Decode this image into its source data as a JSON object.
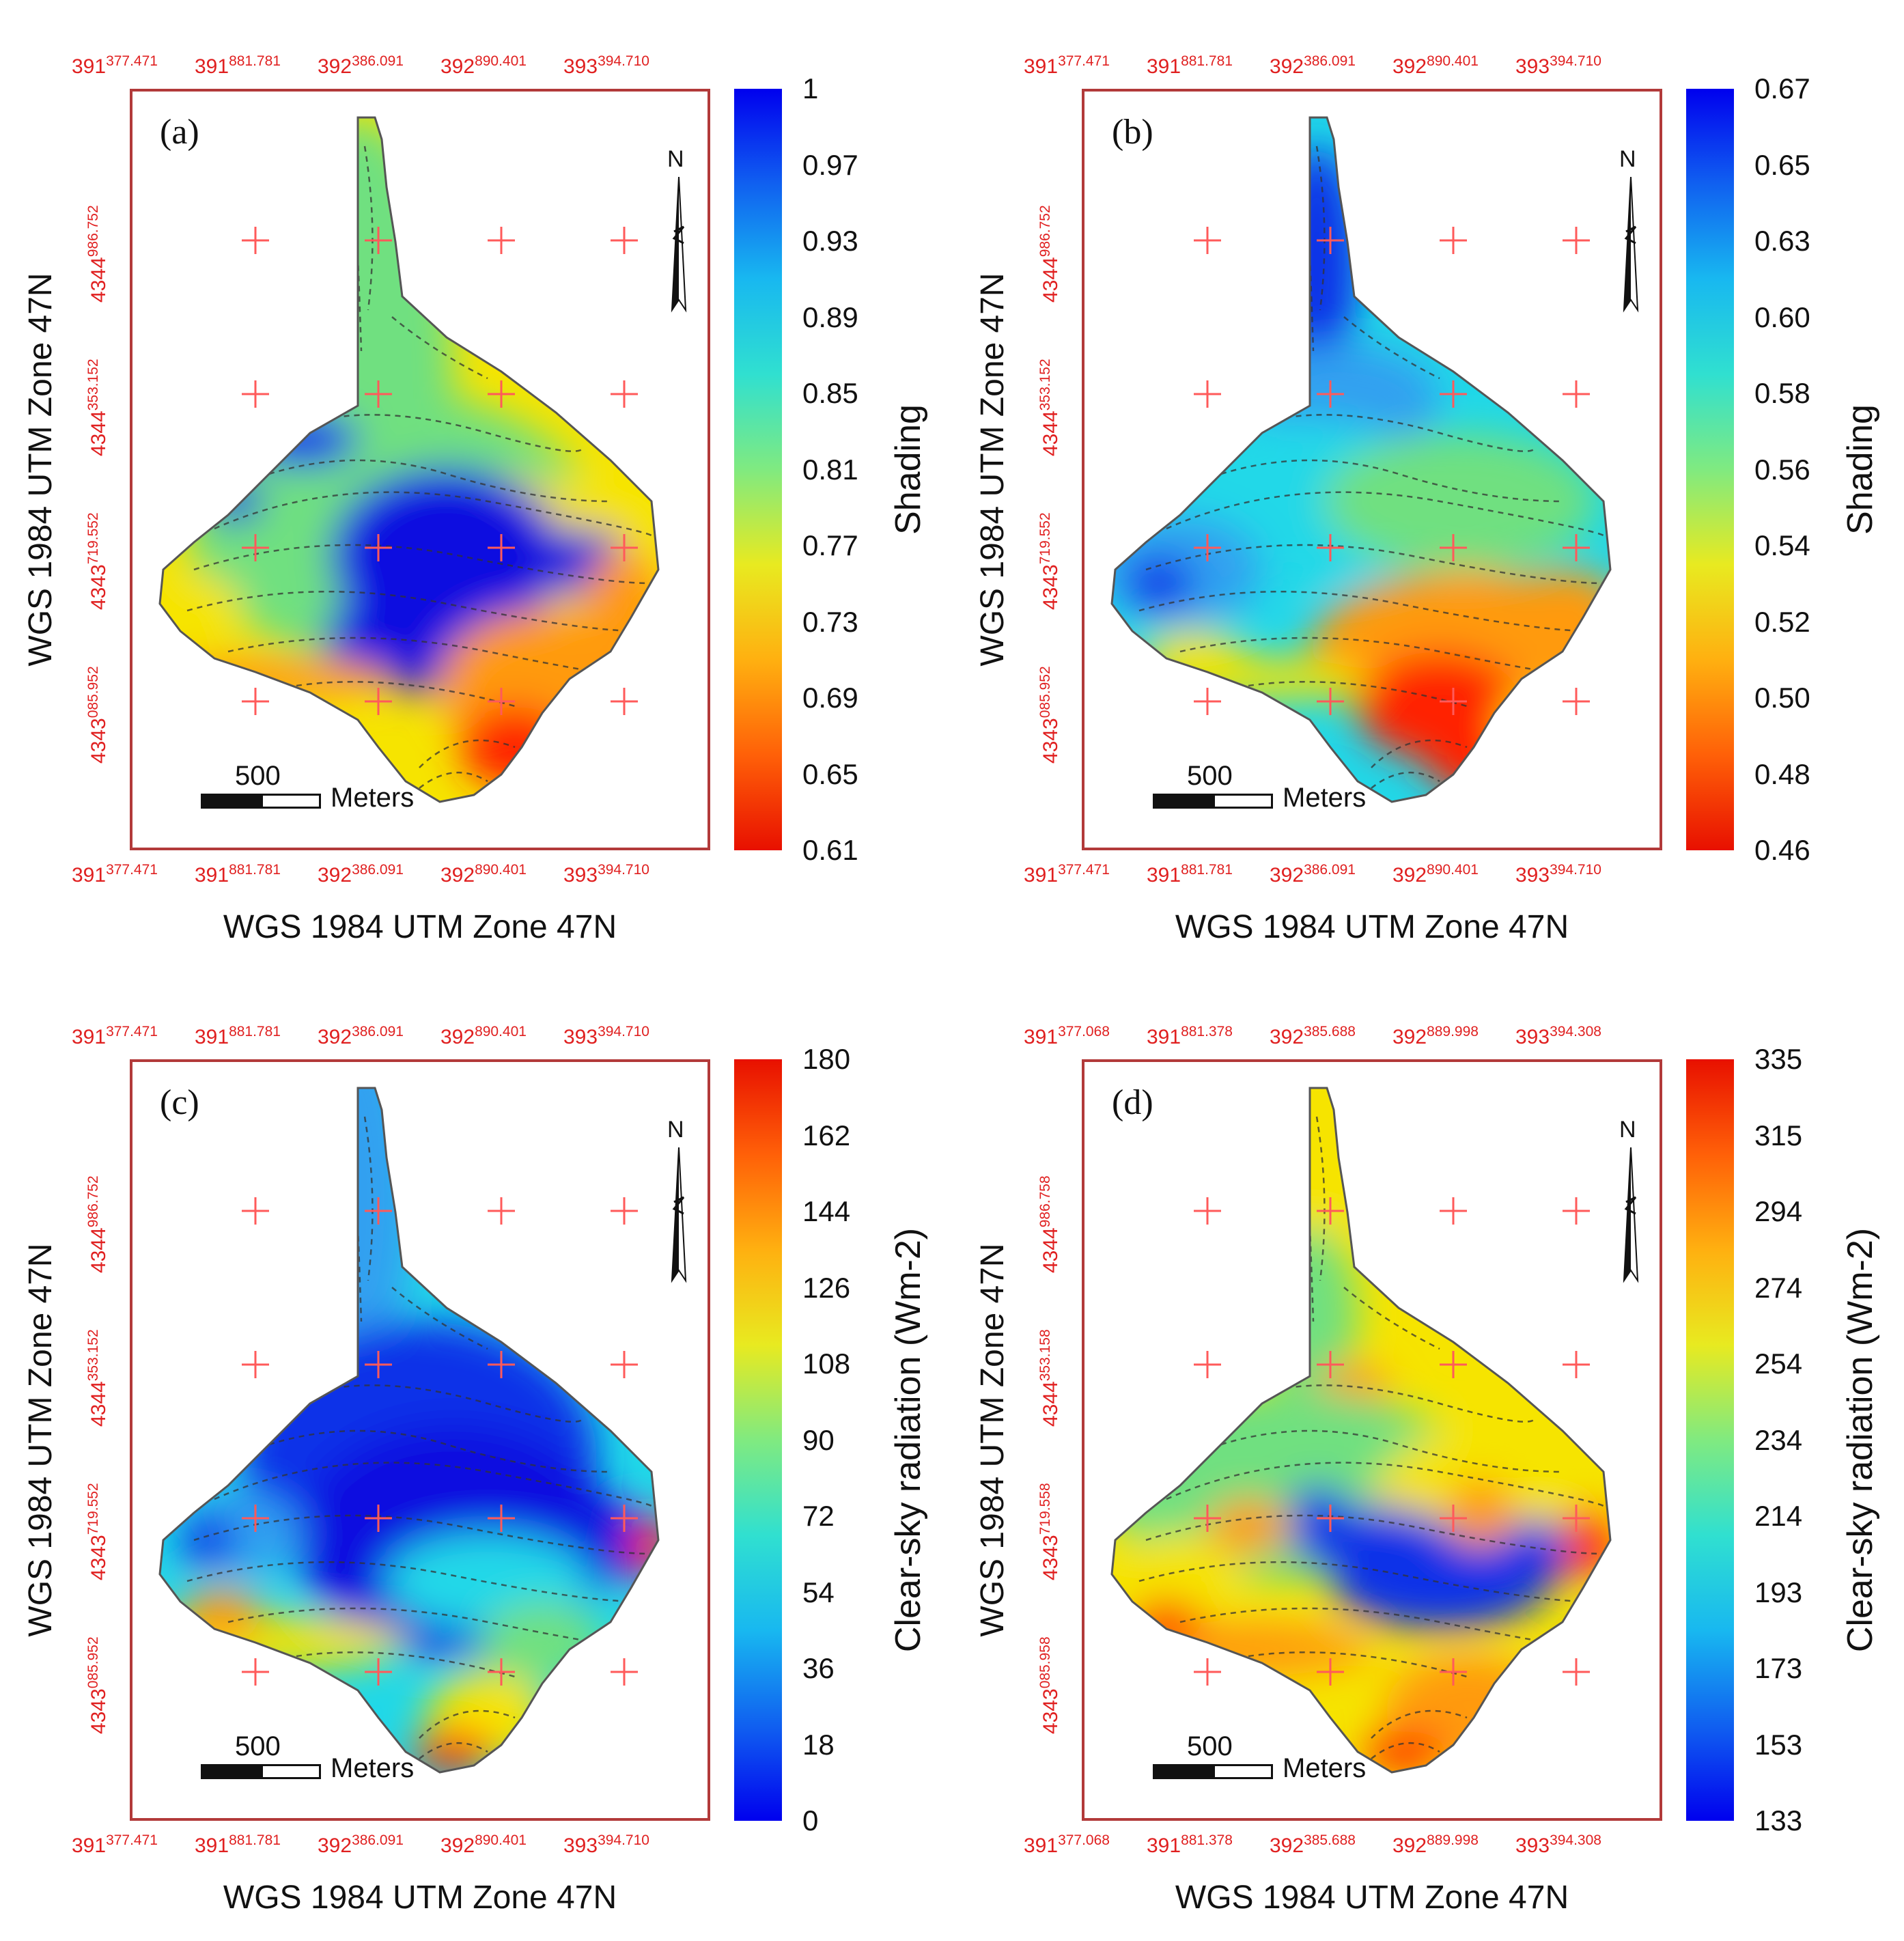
{
  "shared": {
    "frame_title": "WGS 1984 UTM Zone 47N",
    "scale_value": "500",
    "scale_unit": "Meters",
    "north_label": "N"
  },
  "panels": [
    {
      "id": "a",
      "label": "(a)",
      "legend_title": "Shading",
      "legend_values": [
        "1",
        "0.97",
        "0.93",
        "0.89",
        "0.85",
        "0.81",
        "0.77",
        "0.73",
        "0.69",
        "0.65",
        "0.61"
      ],
      "colormap": "reversed",
      "x_ticks": [
        [
          "391",
          "377.471"
        ],
        [
          "391",
          "881.781"
        ],
        [
          "392",
          "386.091"
        ],
        [
          "392",
          "890.401"
        ],
        [
          "393",
          "394.710"
        ]
      ],
      "y_ticks": [
        [
          "4344",
          "986.752"
        ],
        [
          "4344",
          "353.152"
        ],
        [
          "4343",
          "719.552"
        ],
        [
          "4343",
          "085.952"
        ]
      ]
    },
    {
      "id": "b",
      "label": "(b)",
      "legend_title": "Shading",
      "legend_values": [
        "0.67",
        "0.65",
        "0.63",
        "0.60",
        "0.58",
        "0.56",
        "0.54",
        "0.52",
        "0.50",
        "0.48",
        "0.46"
      ],
      "colormap": "reversed",
      "x_ticks": [
        [
          "391",
          "377.471"
        ],
        [
          "391",
          "881.781"
        ],
        [
          "392",
          "386.091"
        ],
        [
          "392",
          "890.401"
        ],
        [
          "393",
          "394.710"
        ]
      ],
      "y_ticks": [
        [
          "4344",
          "986.752"
        ],
        [
          "4344",
          "353.152"
        ],
        [
          "4343",
          "719.552"
        ],
        [
          "4343",
          "085.952"
        ]
      ]
    },
    {
      "id": "c",
      "label": "(c)",
      "legend_title": "Clear-sky radiation (Wm-2)",
      "legend_values": [
        "180",
        "162",
        "144",
        "126",
        "108",
        "90",
        "72",
        "54",
        "36",
        "18",
        "0"
      ],
      "colormap": "normal",
      "x_ticks": [
        [
          "391",
          "377.471"
        ],
        [
          "391",
          "881.781"
        ],
        [
          "392",
          "386.091"
        ],
        [
          "392",
          "890.401"
        ],
        [
          "393",
          "394.710"
        ]
      ],
      "y_ticks": [
        [
          "4344",
          "986.752"
        ],
        [
          "4344",
          "353.152"
        ],
        [
          "4343",
          "719.552"
        ],
        [
          "4343",
          "085.952"
        ]
      ]
    },
    {
      "id": "d",
      "label": "(d)",
      "legend_title": "Clear-sky radiation (Wm-2)",
      "legend_values": [
        "335",
        "315",
        "294",
        "274",
        "254",
        "234",
        "214",
        "193",
        "173",
        "153",
        "133"
      ],
      "colormap": "normal",
      "x_ticks": [
        [
          "391",
          "377.068"
        ],
        [
          "391",
          "881.378"
        ],
        [
          "392",
          "385.688"
        ],
        [
          "392",
          "889.998"
        ],
        [
          "393",
          "394.308"
        ]
      ],
      "y_ticks": [
        [
          "4344",
          "986.758"
        ],
        [
          "4344",
          "353.158"
        ],
        [
          "4343",
          "719.558"
        ],
        [
          "4343",
          "085.958"
        ]
      ]
    }
  ],
  "colors": {
    "frame": "#b23a3a",
    "tick_label": "#e02020",
    "grid_cross": "#ff5a5a",
    "red": "#ff2000",
    "orange": "#ff9a10",
    "yellow": "#f6e400",
    "green": "#70e080",
    "cyan": "#20d8e8",
    "lightblue": "#30a0f0",
    "blue": "#1030e8",
    "darkblue": "#0a0ae0"
  }
}
